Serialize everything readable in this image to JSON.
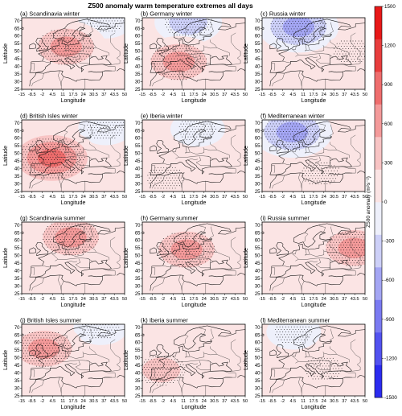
{
  "chart_data": {
    "type": "heatmap",
    "title": "Z500 anomaly warm temperature extremes all days",
    "xlabel": "Longitude",
    "ylabel": "Latitude",
    "x_ticks": [
      "-15",
      "-8.5",
      "-2",
      "4.5",
      "11",
      "17.5",
      "24",
      "30.5",
      "37",
      "43.5",
      "50"
    ],
    "y_ticks": [
      "25",
      "30",
      "35",
      "40",
      "45",
      "50",
      "55",
      "60",
      "65",
      "70"
    ],
    "xlim": [
      -15,
      50
    ],
    "ylim": [
      25,
      72
    ],
    "colorbar": {
      "label": "Z500 anomaly (m²s⁻²)",
      "ticks": [
        "1500",
        "1200",
        "900",
        "600",
        "300",
        "0",
        "-300",
        "-600",
        "-900",
        "-1200",
        "-1500"
      ],
      "levels": [
        -1500,
        -1200,
        -900,
        -600,
        -300,
        0,
        300,
        600,
        900,
        1200,
        1500
      ],
      "colors": [
        "#2b2bf0",
        "#5252f0",
        "#7a7af2",
        "#a4a6f4",
        "#cdd0f8",
        "#eef0fb",
        "#fbe4e4",
        "#f8c4c4",
        "#f49a9a",
        "#ef6d6d",
        "#e83d3d",
        "#e81818"
      ]
    },
    "panels": [
      {
        "label": "(a) Scandinavia winter",
        "highs": [
          {
            "lon": 13,
            "lat": 53,
            "v": 1100
          }
        ],
        "lows": [
          {
            "lon": 38,
            "lat": 70,
            "v": -350
          }
        ]
      },
      {
        "label": "(b) Germany winter",
        "highs": [
          {
            "lon": 8,
            "lat": 43,
            "v": 1100
          }
        ],
        "lows": [
          {
            "lon": 14,
            "lat": 69,
            "v": -750
          }
        ]
      },
      {
        "label": "(c) Russia winter",
        "highs": [
          {
            "lon": 42,
            "lat": 50,
            "v": 550
          }
        ],
        "lows": [
          {
            "lon": 8,
            "lat": 66,
            "v": -1000
          }
        ]
      },
      {
        "label": "(d) British Isles winter",
        "highs": [
          {
            "lon": 4,
            "lat": 47,
            "v": 1200
          }
        ],
        "lows": [
          {
            "lon": 38,
            "lat": 67,
            "v": -450
          }
        ]
      },
      {
        "label": "(e) Iberia winter",
        "highs": [
          {
            "lon": 0,
            "lat": 34,
            "v": 450
          }
        ],
        "lows": [
          {
            "lon": 20,
            "lat": 66,
            "v": -550
          }
        ]
      },
      {
        "label": "(f) Mediterranean winter",
        "highs": [
          {
            "lon": 22,
            "lat": 37,
            "v": 550
          }
        ],
        "lows": [
          {
            "lon": 4,
            "lat": 64,
            "v": -1050
          }
        ]
      },
      {
        "label": "(g) Scandinavia summer",
        "highs": [
          {
            "lon": 16,
            "lat": 62,
            "v": 1050
          }
        ],
        "lows": []
      },
      {
        "label": "(h) Germany summer",
        "highs": [
          {
            "lon": 13,
            "lat": 54,
            "v": 1000
          }
        ],
        "lows": []
      },
      {
        "label": "(i) Russia summer",
        "highs": [
          {
            "lon": 43,
            "lat": 55,
            "v": 1050
          }
        ],
        "lows": []
      },
      {
        "label": "(j) British Isles summer",
        "highs": [
          {
            "lon": -1,
            "lat": 56,
            "v": 1050
          }
        ],
        "lows": [
          {
            "lon": 35,
            "lat": 70,
            "v": -400
          }
        ]
      },
      {
        "label": "(k) Iberia summer",
        "highs": [
          {
            "lon": -3,
            "lat": 42,
            "v": 700
          }
        ],
        "lows": []
      },
      {
        "label": "(l) Mediterranean summer",
        "highs": [
          {
            "lon": 24,
            "lat": 43,
            "v": 350
          }
        ],
        "lows": [
          {
            "lon": 5,
            "lat": 67,
            "v": -300
          }
        ]
      }
    ]
  }
}
